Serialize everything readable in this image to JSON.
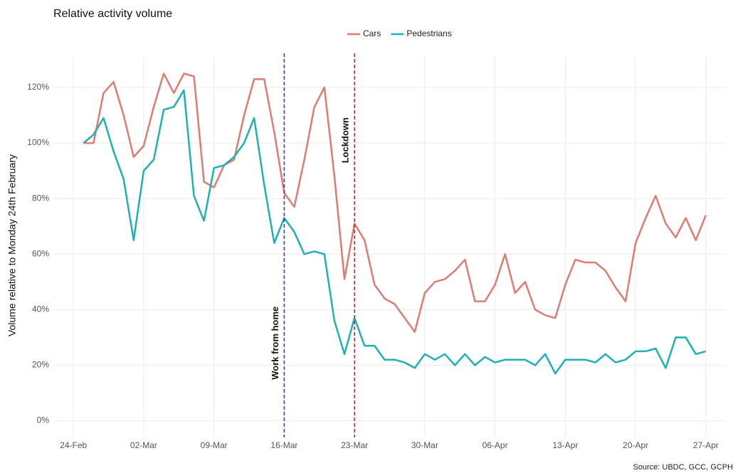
{
  "chart_data": {
    "type": "line",
    "title": "Relative activity volume",
    "y_label": "Volume relative to Monday 24th February",
    "source": "Source: UBDC, GCC, GCPH",
    "x": [
      "25-Feb",
      "26-Feb",
      "27-Feb",
      "28-Feb",
      "29-Feb",
      "01-Mar",
      "02-Mar",
      "03-Mar",
      "04-Mar",
      "05-Mar",
      "06-Mar",
      "07-Mar",
      "08-Mar",
      "09-Mar",
      "10-Mar",
      "11-Mar",
      "12-Mar",
      "13-Mar",
      "14-Mar",
      "15-Mar",
      "16-Mar",
      "17-Mar",
      "18-Mar",
      "19-Mar",
      "20-Mar",
      "21-Mar",
      "22-Mar",
      "23-Mar",
      "24-Mar",
      "25-Mar",
      "26-Mar",
      "27-Mar",
      "28-Mar",
      "29-Mar",
      "30-Mar",
      "31-Mar",
      "01-Apr",
      "02-Apr",
      "03-Apr",
      "04-Apr",
      "05-Apr",
      "06-Apr",
      "07-Apr",
      "08-Apr",
      "09-Apr",
      "10-Apr",
      "11-Apr",
      "12-Apr",
      "13-Apr",
      "14-Apr",
      "15-Apr",
      "16-Apr",
      "17-Apr",
      "18-Apr",
      "19-Apr",
      "20-Apr",
      "21-Apr",
      "22-Apr",
      "23-Apr",
      "24-Apr",
      "25-Apr",
      "26-Apr",
      "27-Apr"
    ],
    "series": [
      {
        "name": "Cars",
        "color": "#e07b74",
        "values": [
          100,
          100,
          118,
          122,
          110,
          95,
          99,
          113,
          125,
          118,
          125,
          124,
          86,
          84,
          92,
          94,
          110,
          123,
          123,
          104,
          82,
          77,
          94,
          113,
          120,
          88,
          51,
          71,
          65,
          49,
          44,
          42,
          37,
          32,
          46,
          50,
          51,
          54,
          58,
          43,
          43,
          49,
          60,
          46,
          50,
          40,
          38,
          37,
          49,
          58,
          57,
          57,
          54,
          48,
          43,
          64,
          73,
          81,
          71,
          66,
          73,
          65,
          74
        ]
      },
      {
        "name": "Pedestrians",
        "color": "#1fb0b5",
        "values": [
          100,
          103,
          109,
          97,
          87,
          65,
          90,
          94,
          112,
          113,
          119,
          81,
          72,
          91,
          92,
          95,
          100,
          109,
          85,
          64,
          73,
          68,
          60,
          61,
          60,
          36,
          24,
          37,
          27,
          27,
          22,
          22,
          21,
          19,
          24,
          22,
          24,
          20,
          24,
          20,
          23,
          21,
          22,
          22,
          22,
          20,
          24,
          17,
          22,
          22,
          22,
          21,
          24,
          21,
          22,
          25,
          25,
          26,
          19,
          30,
          30,
          24,
          25
        ]
      }
    ],
    "xlim": [
      "22-Feb",
      "29-Apr"
    ],
    "xticks": [
      "24-Feb",
      "02-Mar",
      "09-Mar",
      "16-Mar",
      "23-Mar",
      "30-Mar",
      "06-Apr",
      "13-Apr",
      "20-Apr",
      "27-Apr"
    ],
    "ylim": [
      -6,
      131
    ],
    "yticks": [
      {
        "value": 0,
        "label": "0%"
      },
      {
        "value": 20,
        "label": "20%"
      },
      {
        "value": 40,
        "label": "40%"
      },
      {
        "value": 60,
        "label": "60%"
      },
      {
        "value": 80,
        "label": "80%"
      },
      {
        "value": 100,
        "label": "100%"
      },
      {
        "value": 120,
        "label": "120%"
      }
    ],
    "grid": true,
    "annotations": [
      {
        "x": "16-Mar",
        "label": "Work from home",
        "color": "#3a3ac8"
      },
      {
        "x": "23-Mar",
        "label": "Lockdown",
        "color": "#a83a3a"
      }
    ]
  }
}
